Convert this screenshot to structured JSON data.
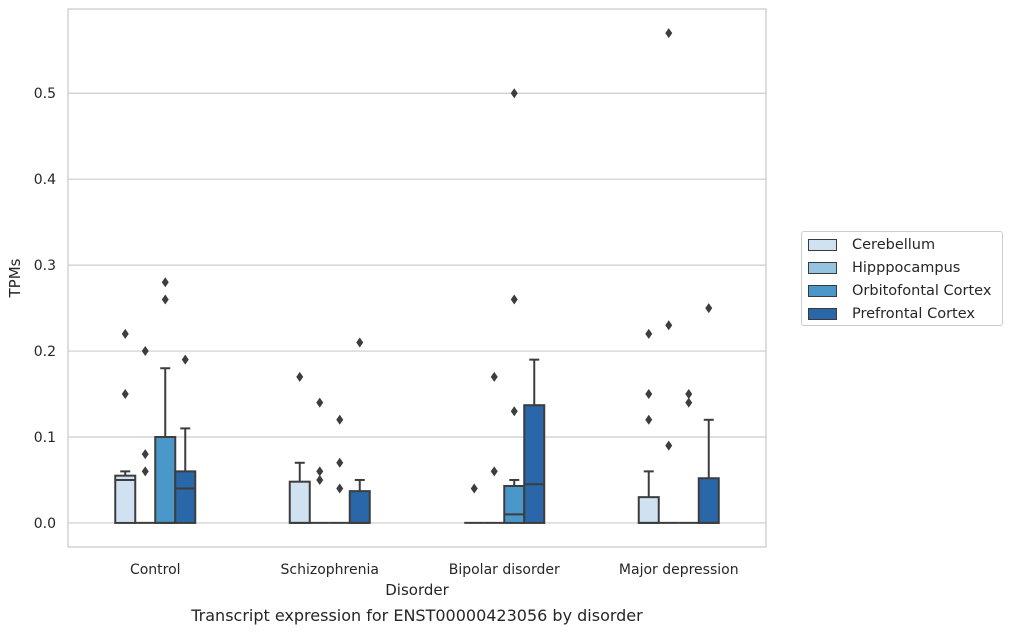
{
  "chart_data": {
    "type": "box",
    "caption": "Transcript expression for ENST00000423056 by disorder",
    "xlabel": "Disorder",
    "ylabel": "TPMs",
    "ylim": [
      -0.028,
      0.598
    ],
    "yticks": [
      0.0,
      0.1,
      0.2,
      0.3,
      0.4,
      0.5
    ],
    "ytick_labels": [
      "0.0",
      "0.1",
      "0.2",
      "0.3",
      "0.4",
      "0.5"
    ],
    "grid": "horizontal",
    "legend_position": "right",
    "categories": [
      "Control",
      "Schizophrenia",
      "Bipolar disorder",
      "Major depression"
    ],
    "series": [
      {
        "name": "Cerebellum",
        "color": "#d0e1f2",
        "boxes": [
          {
            "q1": 0.0,
            "median": 0.05,
            "q3": 0.055,
            "whisker_low": 0.0,
            "whisker_high": 0.06,
            "outliers": [
              0.22,
              0.15
            ]
          },
          {
            "q1": 0.0,
            "median": 0.0,
            "q3": 0.048,
            "whisker_low": 0.0,
            "whisker_high": 0.07,
            "outliers": [
              0.17
            ]
          },
          {
            "q1": 0.0,
            "median": 0.0,
            "q3": 0.0,
            "whisker_low": 0.0,
            "whisker_high": 0.0,
            "outliers": [
              0.04
            ]
          },
          {
            "q1": 0.0,
            "median": 0.0,
            "q3": 0.03,
            "whisker_low": 0.0,
            "whisker_high": 0.06,
            "outliers": [
              0.22,
              0.15,
              0.12
            ]
          }
        ]
      },
      {
        "name": "Hipppocampus",
        "color": "#94c4df",
        "boxes": [
          {
            "q1": 0.0,
            "median": 0.0,
            "q3": 0.0,
            "whisker_low": 0.0,
            "whisker_high": 0.0,
            "outliers": [
              0.2,
              0.08,
              0.06
            ]
          },
          {
            "q1": 0.0,
            "median": 0.0,
            "q3": 0.0,
            "whisker_low": 0.0,
            "whisker_high": 0.0,
            "outliers": [
              0.14,
              0.06,
              0.05
            ]
          },
          {
            "q1": 0.0,
            "median": 0.0,
            "q3": 0.0,
            "whisker_low": 0.0,
            "whisker_high": 0.0,
            "outliers": [
              0.17,
              0.06
            ]
          },
          {
            "q1": 0.0,
            "median": 0.0,
            "q3": 0.0,
            "whisker_low": 0.0,
            "whisker_high": 0.0,
            "outliers": [
              0.23,
              0.09,
              0.57
            ]
          }
        ]
      },
      {
        "name": "Orbitofontal Cortex",
        "color": "#4a98c9",
        "boxes": [
          {
            "q1": 0.0,
            "median": 0.0,
            "q3": 0.1,
            "whisker_low": 0.0,
            "whisker_high": 0.18,
            "outliers": [
              0.28,
              0.26
            ]
          },
          {
            "q1": 0.0,
            "median": 0.0,
            "q3": 0.0,
            "whisker_low": 0.0,
            "whisker_high": 0.0,
            "outliers": [
              0.12,
              0.07,
              0.04
            ]
          },
          {
            "q1": 0.0,
            "median": 0.01,
            "q3": 0.043,
            "whisker_low": 0.0,
            "whisker_high": 0.05,
            "outliers": [
              0.5,
              0.26,
              0.13
            ]
          },
          {
            "q1": 0.0,
            "median": 0.0,
            "q3": 0.0,
            "whisker_low": 0.0,
            "whisker_high": 0.0,
            "outliers": [
              0.15,
              0.14
            ]
          }
        ]
      },
      {
        "name": "Prefrontal Cortex",
        "color": "#2967a8",
        "boxes": [
          {
            "q1": 0.0,
            "median": 0.04,
            "q3": 0.06,
            "whisker_low": 0.0,
            "whisker_high": 0.11,
            "outliers": [
              0.19
            ]
          },
          {
            "q1": 0.0,
            "median": 0.0,
            "q3": 0.037,
            "whisker_low": 0.0,
            "whisker_high": 0.05,
            "outliers": [
              0.21
            ]
          },
          {
            "q1": 0.0,
            "median": 0.045,
            "q3": 0.137,
            "whisker_low": 0.0,
            "whisker_high": 0.19,
            "outliers": []
          },
          {
            "q1": 0.0,
            "median": 0.0,
            "q3": 0.052,
            "whisker_low": 0.0,
            "whisker_high": 0.12,
            "outliers": [
              0.25
            ]
          }
        ]
      }
    ]
  }
}
